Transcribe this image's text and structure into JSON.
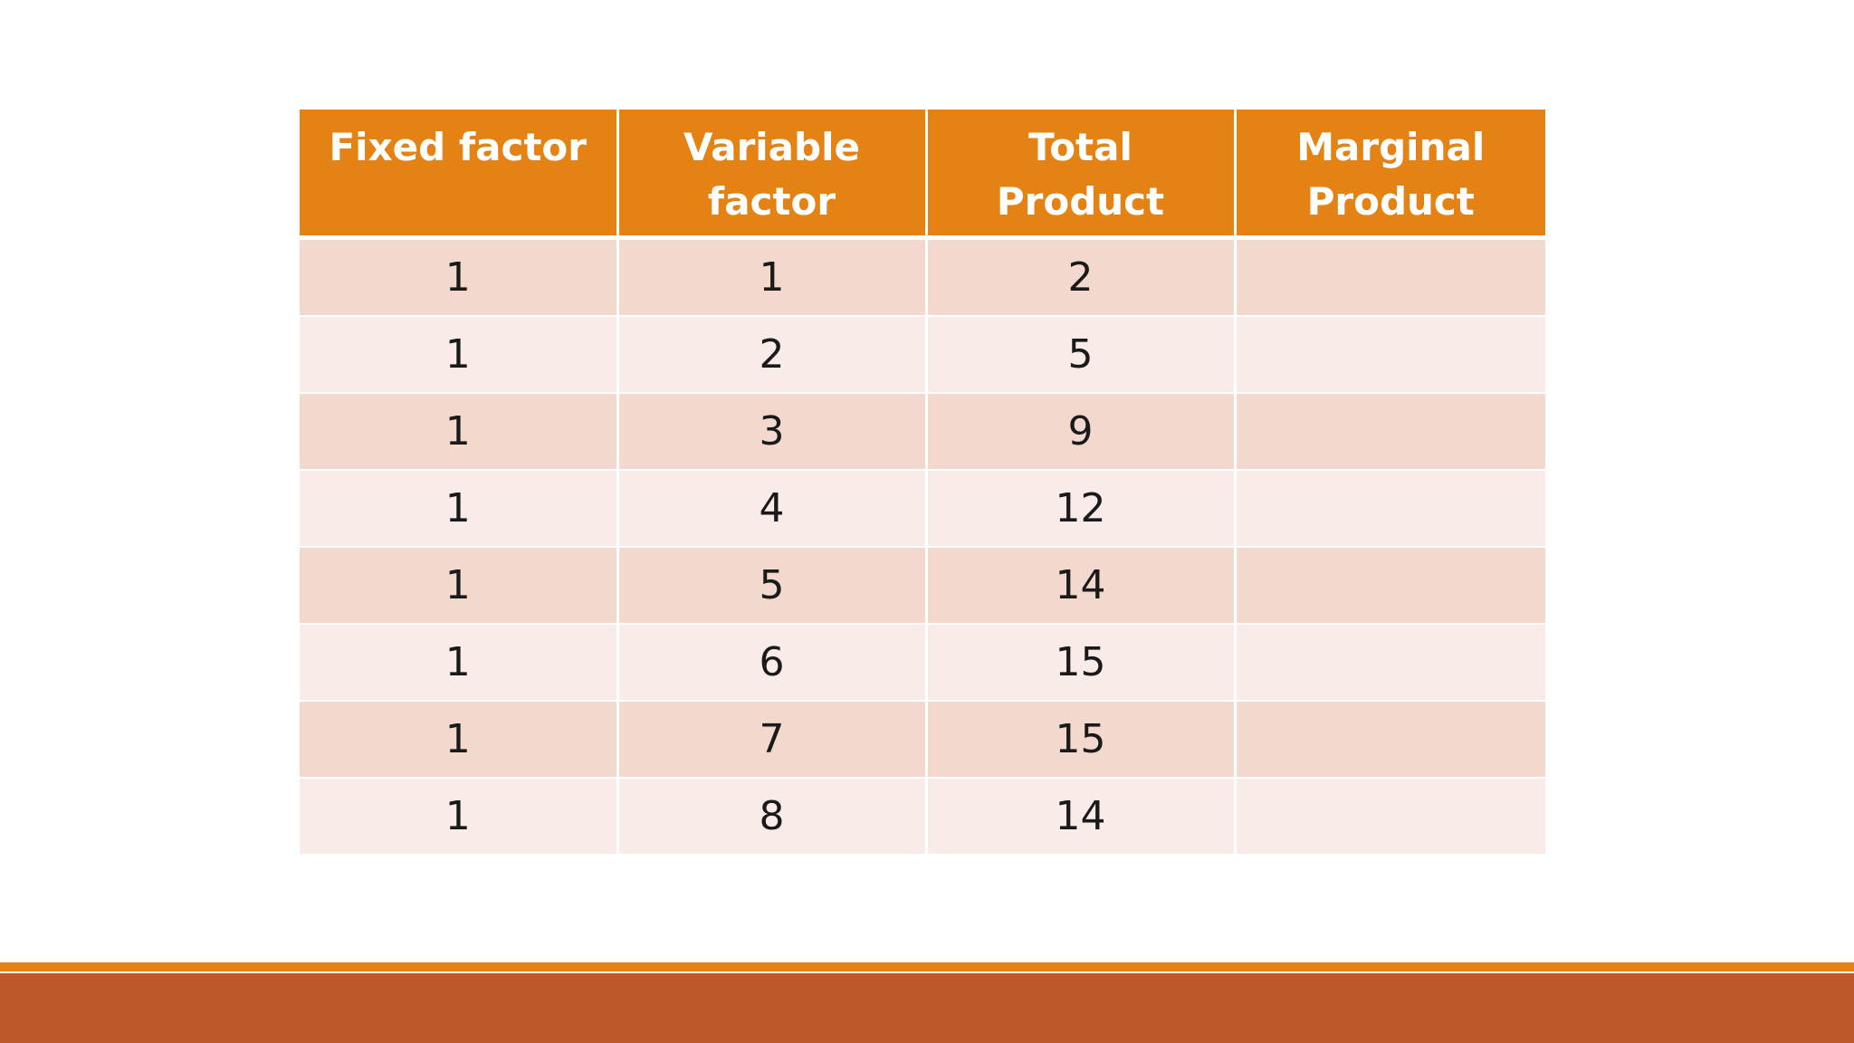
{
  "table": {
    "headers": {
      "fixed_factor": "Fixed factor",
      "variable_factor": "Variable factor",
      "total_product": "Total Product",
      "marginal_product": "Marginal Product"
    },
    "rows": [
      {
        "fixed": "1",
        "variable": "1",
        "total": "2",
        "marginal": ""
      },
      {
        "fixed": "1",
        "variable": "2",
        "total": "5",
        "marginal": ""
      },
      {
        "fixed": "1",
        "variable": "3",
        "total": "9",
        "marginal": ""
      },
      {
        "fixed": "1",
        "variable": "4",
        "total": "12",
        "marginal": ""
      },
      {
        "fixed": "1",
        "variable": "5",
        "total": "14",
        "marginal": ""
      },
      {
        "fixed": "1",
        "variable": "6",
        "total": "15",
        "marginal": ""
      },
      {
        "fixed": "1",
        "variable": "7",
        "total": "15",
        "marginal": ""
      },
      {
        "fixed": "1",
        "variable": "8",
        "total": "14",
        "marginal": ""
      }
    ]
  },
  "colors": {
    "header_bg": "#e48213",
    "row_odd_bg": "#f3d9cd",
    "row_even_bg": "#f9ebe7",
    "footer_line": "#e48213",
    "footer_bar": "#bc582a"
  }
}
